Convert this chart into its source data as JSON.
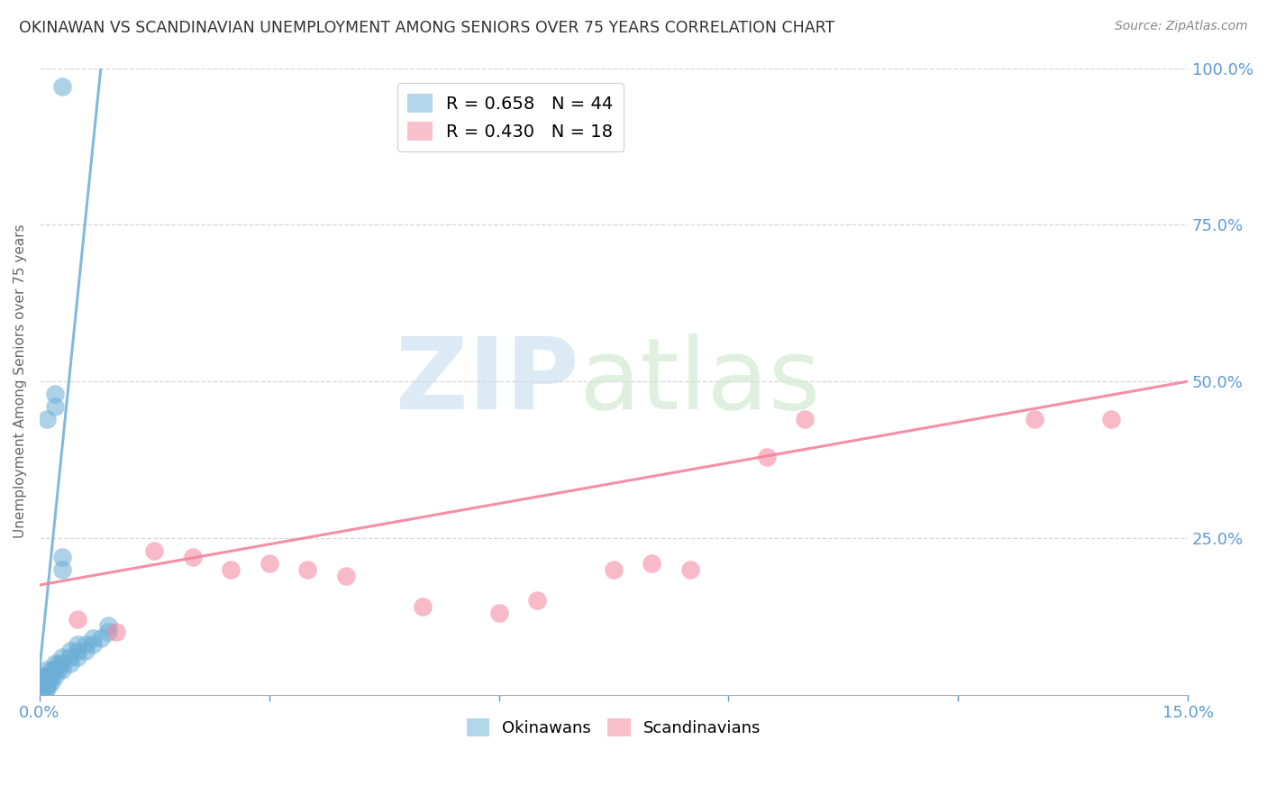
{
  "title": "OKINAWAN VS SCANDINAVIAN UNEMPLOYMENT AMONG SENIORS OVER 75 YEARS CORRELATION CHART",
  "source": "Source: ZipAtlas.com",
  "ylabel": "Unemployment Among Seniors over 75 years",
  "xlim": [
    0.0,
    0.15
  ],
  "ylim": [
    0.0,
    1.0
  ],
  "okinawan_color": "#6baed6",
  "scandinavian_color": "#f4829e",
  "okinawan_R": 0.658,
  "okinawan_N": 44,
  "scandinavian_R": 0.43,
  "scandinavian_N": 18,
  "background_color": "#ffffff",
  "axis_label_color": "#5b9bd5",
  "okinawan_x": [
    0.0005,
    0.0005,
    0.0005,
    0.0005,
    0.0005,
    0.0008,
    0.0008,
    0.0008,
    0.001,
    0.001,
    0.001,
    0.001,
    0.0012,
    0.0012,
    0.0015,
    0.0015,
    0.0015,
    0.002,
    0.002,
    0.002,
    0.0025,
    0.0025,
    0.003,
    0.003,
    0.003,
    0.003,
    0.003,
    0.004,
    0.004,
    0.004,
    0.005,
    0.005,
    0.005,
    0.006,
    0.006,
    0.007,
    0.007,
    0.008,
    0.009,
    0.009,
    0.001,
    0.002,
    0.002,
    0.003
  ],
  "okinawan_y": [
    0.01,
    0.01,
    0.02,
    0.02,
    0.03,
    0.01,
    0.02,
    0.03,
    0.01,
    0.02,
    0.03,
    0.04,
    0.02,
    0.03,
    0.02,
    0.03,
    0.04,
    0.03,
    0.04,
    0.05,
    0.04,
    0.05,
    0.04,
    0.05,
    0.06,
    0.2,
    0.22,
    0.05,
    0.06,
    0.07,
    0.06,
    0.07,
    0.08,
    0.07,
    0.08,
    0.08,
    0.09,
    0.09,
    0.1,
    0.11,
    0.44,
    0.46,
    0.48,
    0.97
  ],
  "scandinavian_x": [
    0.005,
    0.01,
    0.015,
    0.02,
    0.025,
    0.03,
    0.035,
    0.04,
    0.05,
    0.06,
    0.065,
    0.075,
    0.08,
    0.085,
    0.095,
    0.1,
    0.13,
    0.14
  ],
  "scandinavian_y": [
    0.12,
    0.1,
    0.23,
    0.22,
    0.2,
    0.21,
    0.2,
    0.19,
    0.14,
    0.13,
    0.15,
    0.2,
    0.21,
    0.2,
    0.38,
    0.44,
    0.44,
    0.44
  ],
  "ok_trendline_x0": 0.0,
  "ok_trendline_y0": 0.04,
  "ok_trendline_x1": 0.008,
  "ok_trendline_y1": 1.0,
  "sc_trendline_x0": 0.0,
  "sc_trendline_y0": 0.175,
  "sc_trendline_x1": 0.15,
  "sc_trendline_y1": 0.5
}
